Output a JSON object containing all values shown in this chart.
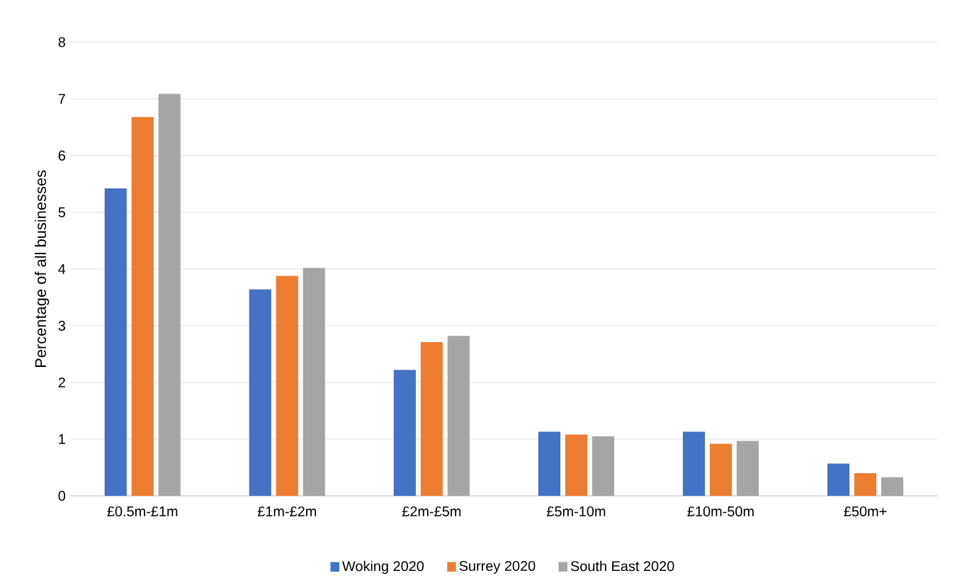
{
  "chart_data": {
    "type": "bar",
    "ylabel": "Percentage of all businesses",
    "categories": [
      "£0.5m-£1m",
      "£1m-£2m",
      "£2m-£5m",
      "£5m-10m",
      "£10m-50m",
      "£50m+"
    ],
    "series": [
      {
        "name": "Woking 2020",
        "color": "#4472c4",
        "values": [
          5.42,
          3.64,
          2.22,
          1.13,
          1.13,
          0.57
        ]
      },
      {
        "name": "Surrey 2020",
        "color": "#ed7d31",
        "values": [
          6.68,
          3.88,
          2.71,
          1.08,
          0.92,
          0.4
        ]
      },
      {
        "name": "South East 2020",
        "color": "#a5a5a5",
        "values": [
          7.09,
          4.02,
          2.82,
          1.05,
          0.97,
          0.33
        ]
      }
    ],
    "ylim": [
      0,
      8
    ],
    "yticks": [
      0,
      1,
      2,
      3,
      4,
      5,
      6,
      7,
      8
    ],
    "grid": "y",
    "legend": "bottom"
  }
}
